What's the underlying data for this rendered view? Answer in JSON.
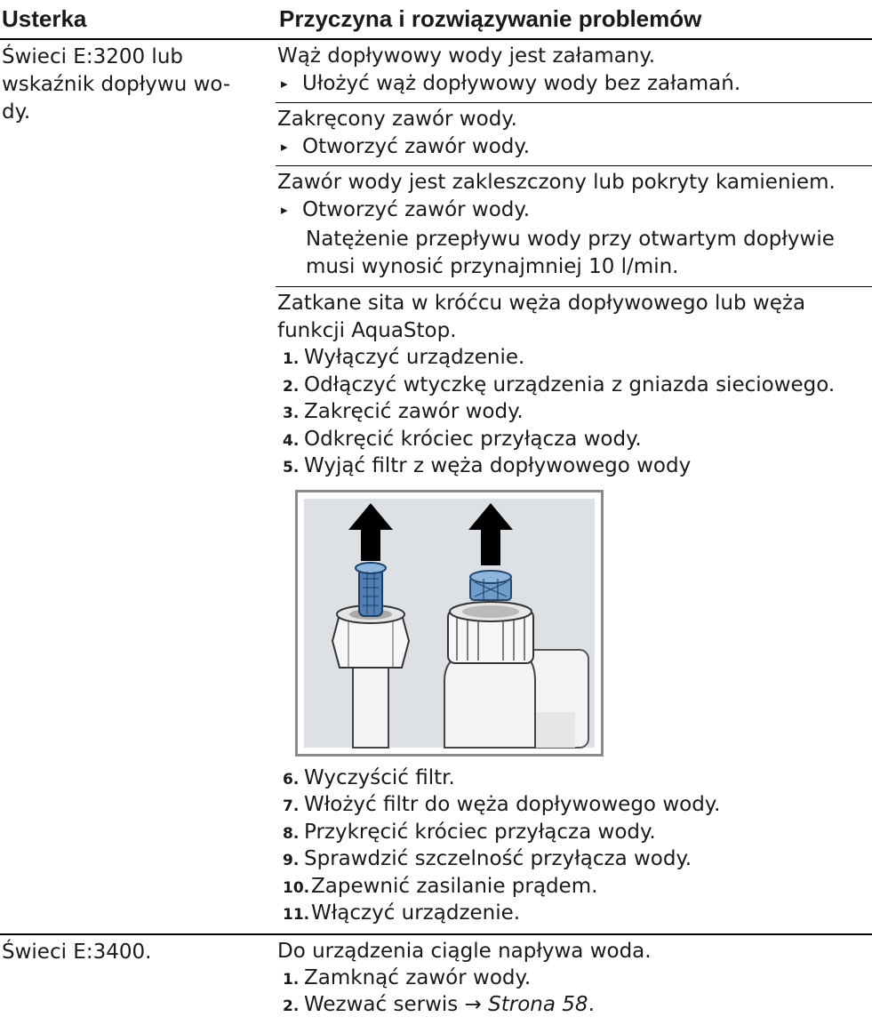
{
  "header": {
    "fault": "Usterka",
    "cause": "Przyczyna i rozwiązywanie problemów"
  },
  "rows": [
    {
      "fault": [
        "Świeci E:3200 lub",
        "wskaźnik dopływu wo-",
        "dy."
      ],
      "causes": [
        {
          "cause": [
            "Wąż dopływowy wody jest załamany."
          ],
          "action": "Ułożyć wąż dopływowy wody bez załamań."
        },
        {
          "cause": [
            "Zakręcony zawór wody."
          ],
          "action": "Otworzyć zawór wody."
        },
        {
          "cause": [
            "Zawór wody jest zakleszczony lub pokryty kamieniem."
          ],
          "action": "Otworzyć zawór wody.",
          "note": [
            "Natężenie przepływu wody przy otwartym dopływie",
            "musi wynosić przynajmniej 10 l/min."
          ]
        },
        {
          "cause": [
            "Zatkane sita w króćcu węża dopływowego lub węża",
            "funkcji AquaStop."
          ],
          "steps": [
            {
              "number": "1.",
              "text": "Wyłączyć urządzenie."
            },
            {
              "number": "2.",
              "text": "Odłączyć wtyczkę urządzenia z gniazda sieciowego."
            },
            {
              "number": "3.",
              "text": "Zakręcić zawór wody."
            },
            {
              "number": "4.",
              "text": "Odkręcić króciec przyłącza wody."
            },
            {
              "number": "5.",
              "text": "Wyjąć filtr z węża dopływowego wody"
            }
          ],
          "steps_after": [
            {
              "number": "6.",
              "text": "Wyczyścić filtr."
            },
            {
              "number": "7.",
              "text": "Włożyć filtr do węża dopływowego wody."
            },
            {
              "number": "8.",
              "text": "Przykręcić króciec przyłącza wody."
            },
            {
              "number": "9.",
              "text": "Sprawdzić szczelność przyłącza wody."
            },
            {
              "number": "10.",
              "text": "Zapewnić zasilanie prądem."
            },
            {
              "number": "11.",
              "text": "Włączyć urządzenie."
            }
          ]
        }
      ]
    },
    {
      "fault": [
        "Świeci E:3400."
      ],
      "causes": [
        {
          "cause": [
            "Do urządzenia ciągle napływa woda."
          ],
          "steps": [
            {
              "number": "1.",
              "text": "Zamknąć zawór wody."
            },
            {
              "number": "2.",
              "text": "Wezwać serwis →",
              "link": "Strona 58",
              "suffix": "."
            }
          ]
        }
      ]
    }
  ]
}
